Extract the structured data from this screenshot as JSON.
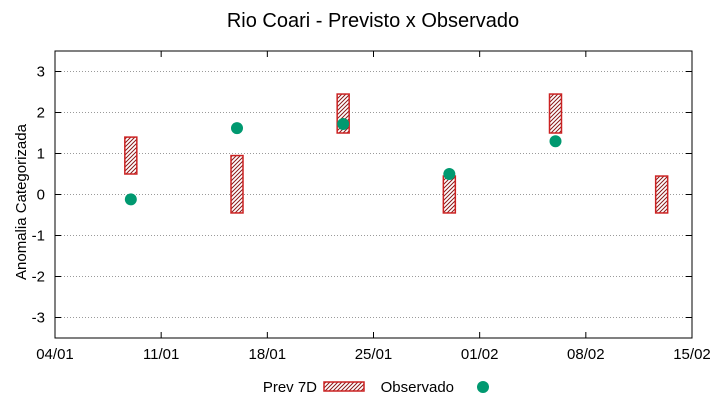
{
  "chart_data": {
    "type": "range-box + scatter",
    "title": "Rio Coari - Previsto x Observado",
    "xlabel": "",
    "ylabel": "Anomalia Categorizada",
    "ylim": [
      -3.5,
      3.5
    ],
    "yticks": [
      -3,
      -2,
      -1,
      0,
      1,
      2,
      3
    ],
    "xlim_days": [
      0,
      42
    ],
    "xticks": [
      {
        "day": 0,
        "label": "04/01"
      },
      {
        "day": 7,
        "label": "11/01"
      },
      {
        "day": 14,
        "label": "18/01"
      },
      {
        "day": 21,
        "label": "25/01"
      },
      {
        "day": 28,
        "label": "01/02"
      },
      {
        "day": 35,
        "label": "08/02"
      },
      {
        "day": 42,
        "label": "15/02"
      }
    ],
    "grid": "horizontal dotted",
    "series": [
      {
        "name": "Prev 7D",
        "kind": "range",
        "color": "#cc2222",
        "points": [
          {
            "day": 5,
            "low": 0.5,
            "high": 1.4
          },
          {
            "day": 12,
            "low": -0.45,
            "high": 0.95
          },
          {
            "day": 19,
            "low": 1.5,
            "high": 2.45
          },
          {
            "day": 26,
            "low": -0.45,
            "high": 0.45
          },
          {
            "day": 33,
            "low": 1.5,
            "high": 2.45
          },
          {
            "day": 40,
            "low": -0.45,
            "high": 0.45
          }
        ]
      },
      {
        "name": "Observado",
        "kind": "point",
        "color": "#009970",
        "points": [
          {
            "day": 5,
            "value": -0.12
          },
          {
            "day": 12,
            "value": 1.62
          },
          {
            "day": 19,
            "value": 1.72
          },
          {
            "day": 26,
            "value": 0.5
          },
          {
            "day": 33,
            "value": 1.3
          }
        ]
      }
    ],
    "legend": {
      "position": "bottom",
      "items": [
        "Prev 7D",
        "Observado"
      ]
    }
  }
}
